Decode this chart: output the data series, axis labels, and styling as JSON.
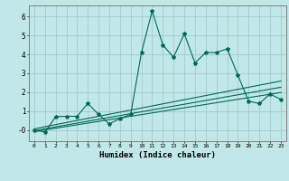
{
  "xlabel": "Humidex (Indice chaleur)",
  "background_color": "#c0e8e8",
  "grid_color": "#a8c8c8",
  "line_color": "#006858",
  "xlim": [
    -0.5,
    23.5
  ],
  "ylim": [
    -0.6,
    6.6
  ],
  "yticks": [
    0,
    1,
    2,
    3,
    4,
    5,
    6
  ],
  "ytick_labels": [
    "-0",
    "1",
    "2",
    "3",
    "4",
    "5",
    "6"
  ],
  "xtick_labels": [
    "0",
    "1",
    "2",
    "3",
    "4",
    "5",
    "6",
    "7",
    "8",
    "9",
    "10",
    "11",
    "12",
    "13",
    "14",
    "15",
    "16",
    "17",
    "18",
    "19",
    "20",
    "21",
    "22",
    "23"
  ],
  "main": [
    0.0,
    -0.12,
    0.7,
    0.72,
    0.72,
    1.4,
    0.82,
    0.32,
    0.6,
    0.82,
    4.1,
    6.3,
    4.5,
    3.85,
    5.1,
    3.55,
    4.1,
    4.1,
    4.3,
    2.9,
    1.52,
    1.4,
    1.9,
    1.62
  ],
  "upper": [
    0.05,
    0.17,
    0.28,
    0.39,
    0.5,
    0.61,
    0.72,
    0.83,
    0.94,
    1.05,
    1.16,
    1.27,
    1.38,
    1.49,
    1.6,
    1.71,
    1.82,
    1.93,
    2.04,
    2.15,
    2.26,
    2.37,
    2.48,
    2.59
  ],
  "mid": [
    -0.05,
    0.06,
    0.16,
    0.26,
    0.36,
    0.46,
    0.56,
    0.66,
    0.76,
    0.86,
    0.96,
    1.06,
    1.16,
    1.26,
    1.36,
    1.46,
    1.56,
    1.66,
    1.76,
    1.86,
    1.96,
    2.06,
    2.16,
    2.26
  ],
  "lower": [
    -0.1,
    0.0,
    0.09,
    0.18,
    0.27,
    0.36,
    0.45,
    0.54,
    0.63,
    0.72,
    0.81,
    0.9,
    0.99,
    1.08,
    1.17,
    1.26,
    1.35,
    1.44,
    1.53,
    1.62,
    1.71,
    1.8,
    1.89,
    1.98
  ]
}
